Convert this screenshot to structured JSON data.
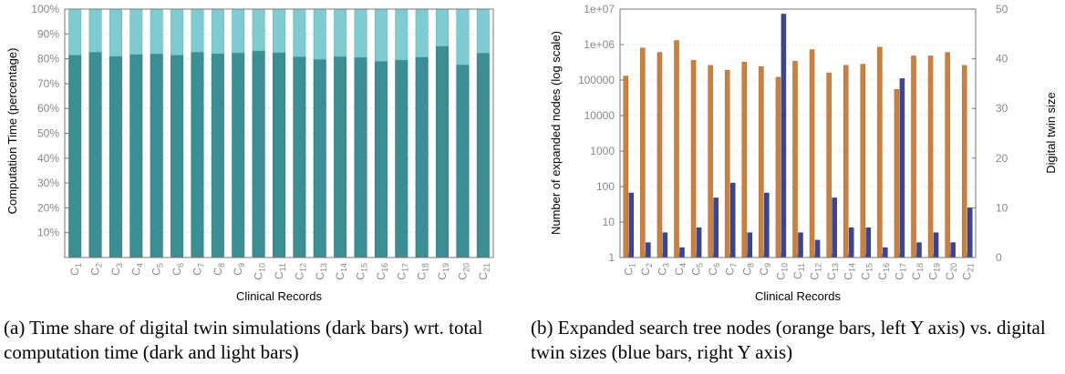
{
  "chart_data": [
    {
      "type": "bar",
      "stacked": true,
      "caption": "(a) Time share of digital twin simulations (dark bars) wrt. total computation time (dark and light bars)",
      "xlabel": "Clinical Records",
      "ylabel": "Computation Time (percentage)",
      "ylim": [
        0,
        100
      ],
      "yticks": [
        "10%",
        "20%",
        "30%",
        "40%",
        "50%",
        "60%",
        "70%",
        "80%",
        "90%",
        "100%"
      ],
      "grid": true,
      "categories": [
        "C1",
        "C2",
        "C3",
        "C4",
        "C5",
        "C6",
        "C7",
        "C8",
        "C9",
        "C10",
        "C11",
        "C12",
        "C13",
        "C14",
        "C15",
        "C16",
        "C17",
        "C18",
        "C19",
        "C20",
        "C21"
      ],
      "series": [
        {
          "color": "#3a8f94",
          "values": [
            81.5,
            82.7,
            81.0,
            81.8,
            82.0,
            81.5,
            82.7,
            82.1,
            82.4,
            83.2,
            82.5,
            80.8,
            79.8,
            80.9,
            80.6,
            79.0,
            79.5,
            80.7,
            85.1,
            77.6,
            82.3
          ]
        },
        {
          "color": "#7ecbd2",
          "values": [
            18.5,
            17.3,
            19.0,
            18.2,
            18.0,
            18.5,
            17.3,
            17.9,
            17.6,
            16.8,
            17.5,
            19.2,
            20.2,
            19.1,
            19.4,
            21.0,
            20.5,
            19.3,
            14.9,
            22.4,
            17.7
          ]
        }
      ]
    },
    {
      "type": "bar",
      "caption": "(b) Expanded search tree nodes (orange bars, left Y axis) vs. digital twin sizes (blue bars, right Y axis)",
      "xlabel": "Clinical Records",
      "ylabel_left": "Number of expanded nodes (log scale)",
      "ylabel_right": "Digital twin size",
      "y_left_scale": "log",
      "y_left_ticks": [
        "1",
        "10",
        "100",
        "1000",
        "10000",
        "100000",
        "1e+06",
        "1e+07"
      ],
      "ylim_right": [
        0,
        50
      ],
      "y_right_ticks": [
        "0",
        "10",
        "20",
        "30",
        "40",
        "50"
      ],
      "grid": true,
      "categories": [
        "C1",
        "C2",
        "C3",
        "C4",
        "C5",
        "C6",
        "C7",
        "C8",
        "C9",
        "C10",
        "C11",
        "C12",
        "C13",
        "C14",
        "C15",
        "C16",
        "C17",
        "C18",
        "C19",
        "C20",
        "C21"
      ],
      "series": [
        {
          "axis": "left",
          "color": "#cd7f3c",
          "values": [
            130000,
            800000,
            600000,
            1300000,
            360000,
            260000,
            190000,
            320000,
            240000,
            120000,
            340000,
            720000,
            160000,
            260000,
            280000,
            850000,
            55000,
            480000,
            480000,
            600000,
            260000
          ]
        },
        {
          "axis": "right",
          "color": "#3a4597",
          "values": [
            13,
            3,
            5,
            2,
            6,
            12,
            15,
            5,
            13,
            49,
            5,
            3.5,
            12,
            6,
            6,
            2,
            36,
            3,
            5,
            3,
            10
          ]
        }
      ]
    }
  ]
}
